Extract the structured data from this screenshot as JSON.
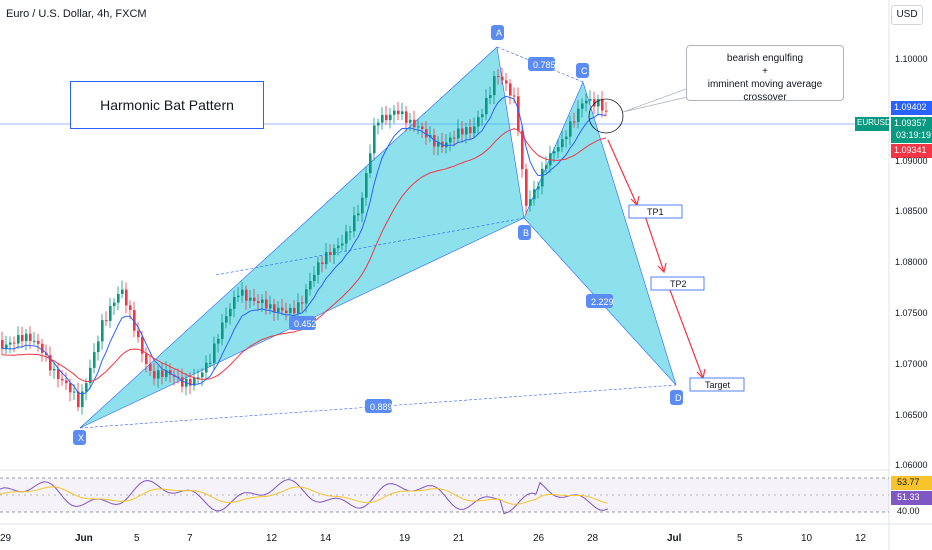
{
  "header": {
    "title": "Euro / U.S. Dollar, 4h, FXCM",
    "currency_button": "USD"
  },
  "annotations": {
    "pattern_title": "Harmonic Bat Pattern",
    "callout_line1": "bearish engulfing",
    "callout_line2": "+",
    "callout_line3": "imminent moving average crossover",
    "points": {
      "A": "A",
      "B": "B",
      "C": "C",
      "D": "D",
      "X": "X"
    },
    "ratios": {
      "xa_ab": "0.785",
      "ab_bc": "0.452",
      "bc_cd": "2.229",
      "xa_ad": "0.889"
    },
    "targets": {
      "tp1": "TP1",
      "tp2": "TP2",
      "target": "Target"
    }
  },
  "price_axis": {
    "ticks": [
      "1.10000",
      "1.09000",
      "1.08500",
      "1.08000",
      "1.07500",
      "1.07000",
      "1.06500",
      "1.06000"
    ],
    "tag_top": "1.09402",
    "tag_symbol": "EURUSD",
    "tag_price": "1.09357",
    "tag_time": "03:19:19",
    "tag_bottom": "1.09341"
  },
  "rsi_axis": {
    "tick": "40.00",
    "tag_ma": "53.77",
    "tag_rsi": "51.33"
  },
  "time_axis": [
    "29",
    "Jun",
    "5",
    "7",
    "12",
    "14",
    "19",
    "21",
    "26",
    "28",
    "Jul",
    "5",
    "10",
    "12"
  ],
  "colors": {
    "up": "#089981",
    "down": "#f23645",
    "pattern_fill": "#00bcd4",
    "accent": "#2962ff",
    "ma_fast": "#2962ff",
    "ma_slow": "#f23645"
  }
}
